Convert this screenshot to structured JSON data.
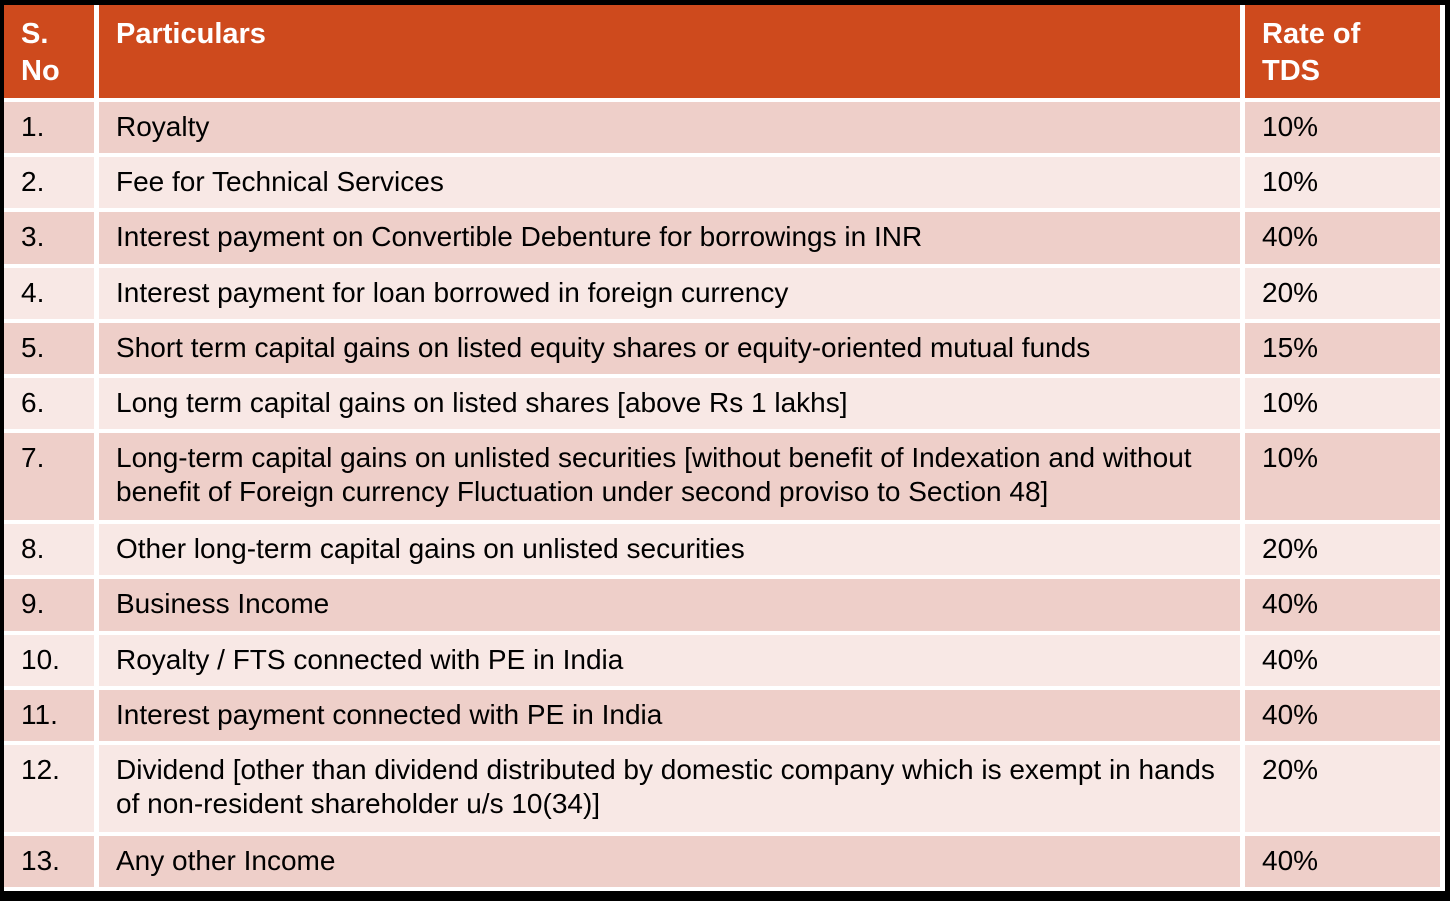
{
  "colors": {
    "header_bg": "#ce4a1d",
    "header_text": "#ffffff",
    "row_dark": "#eecfc9",
    "row_light": "#f8e8e5",
    "body_text": "#000000",
    "border": "#000000"
  },
  "chart_data": {
    "type": "table",
    "columns": [
      "S. No",
      "Particulars",
      "Rate of TDS"
    ],
    "rows": [
      [
        "1.",
        "Royalty",
        "10%"
      ],
      [
        "2.",
        "Fee for Technical Services",
        "10%"
      ],
      [
        "3.",
        "Interest payment on Convertible Debenture for borrowings in INR",
        "40%"
      ],
      [
        "4.",
        "Interest payment for loan borrowed in foreign currency",
        "20%"
      ],
      [
        "5.",
        "Short term capital gains on listed equity shares or equity-oriented mutual funds",
        "15%"
      ],
      [
        "6.",
        "Long term capital gains on listed shares [above Rs 1 lakhs]",
        "10%"
      ],
      [
        "7.",
        "Long-term capital gains on unlisted securities [without benefit of Indexation and without benefit of Foreign currency Fluctuation under second proviso to Section 48]",
        "10%"
      ],
      [
        "8.",
        "Other long-term capital gains on unlisted securities",
        "20%"
      ],
      [
        "9.",
        "Business Income",
        "40%"
      ],
      [
        "10.",
        "Royalty / FTS connected with PE in India",
        "40%"
      ],
      [
        "11.",
        "Interest payment connected with PE in India",
        "40%"
      ],
      [
        "12.",
        "Dividend [other than dividend distributed by domestic company which is exempt in hands of non-resident shareholder u/s 10(34)]",
        "20%"
      ],
      [
        "13.",
        "Any other Income",
        "40%"
      ]
    ]
  }
}
